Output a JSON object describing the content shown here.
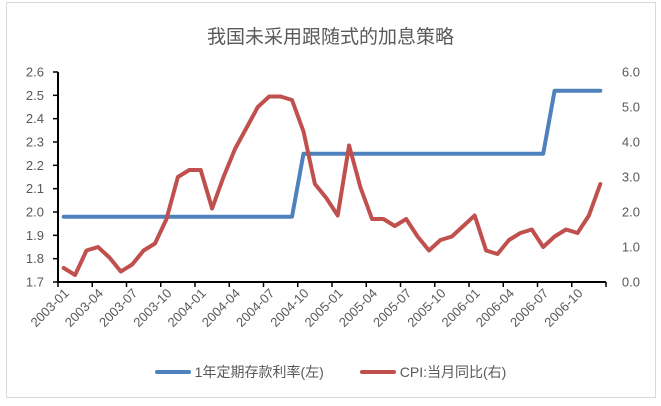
{
  "title": "我国未采用跟随式的加息策略",
  "colors": {
    "rate": "#4f81bd",
    "cpi": "#c0504d",
    "axis": "#000000",
    "text": "#595959"
  },
  "legend": [
    {
      "label": "1年定期存款利率(左)",
      "color": "#4f81bd"
    },
    {
      "label": "CPI:当月同比(右)",
      "color": "#c0504d"
    }
  ],
  "chart_data": {
    "type": "line",
    "title": "我国未采用跟随式的加息策略",
    "xlabel": "",
    "ylabel_left": "",
    "ylabel_right": "",
    "left_axis": {
      "min": 1.7,
      "max": 2.6,
      "step": 0.1,
      "ticks": [
        "2.6",
        "2.5",
        "2.4",
        "2.3",
        "2.2",
        "2.1",
        "2.0",
        "1.9",
        "1.8",
        "1.7"
      ]
    },
    "right_axis": {
      "min": 0.0,
      "max": 6.0,
      "step": 1.0,
      "ticks": [
        "6.0",
        "5.0",
        "4.0",
        "3.0",
        "2.0",
        "1.0",
        "0.0"
      ]
    },
    "x_tick_labels": [
      "2003-01",
      "2003-04",
      "2003-07",
      "2003-10",
      "2004-01",
      "2004-04",
      "2004-07",
      "2004-10",
      "2005-01",
      "2005-04",
      "2005-07",
      "2005-10",
      "2006-01",
      "2006-04",
      "2006-07",
      "2006-10"
    ],
    "x": [
      "2003-01",
      "2003-02",
      "2003-03",
      "2003-04",
      "2003-05",
      "2003-06",
      "2003-07",
      "2003-08",
      "2003-09",
      "2003-10",
      "2003-11",
      "2003-12",
      "2004-01",
      "2004-02",
      "2004-03",
      "2004-04",
      "2004-05",
      "2004-06",
      "2004-07",
      "2004-08",
      "2004-09",
      "2004-10",
      "2004-11",
      "2004-12",
      "2005-01",
      "2005-02",
      "2005-03",
      "2005-04",
      "2005-05",
      "2005-06",
      "2005-07",
      "2005-08",
      "2005-09",
      "2005-10",
      "2005-11",
      "2005-12",
      "2006-01",
      "2006-02",
      "2006-03",
      "2006-04",
      "2006-05",
      "2006-06",
      "2006-07",
      "2006-08",
      "2006-09",
      "2006-10",
      "2006-11",
      "2006-12"
    ],
    "series": [
      {
        "name": "1年定期存款利率(左)",
        "axis": "left",
        "color": "#4f81bd",
        "values": [
          1.98,
          1.98,
          1.98,
          1.98,
          1.98,
          1.98,
          1.98,
          1.98,
          1.98,
          1.98,
          1.98,
          1.98,
          1.98,
          1.98,
          1.98,
          1.98,
          1.98,
          1.98,
          1.98,
          1.98,
          1.98,
          2.25,
          2.25,
          2.25,
          2.25,
          2.25,
          2.25,
          2.25,
          2.25,
          2.25,
          2.25,
          2.25,
          2.25,
          2.25,
          2.25,
          2.25,
          2.25,
          2.25,
          2.25,
          2.25,
          2.25,
          2.25,
          2.25,
          2.52,
          2.52,
          2.52,
          2.52,
          2.52
        ]
      },
      {
        "name": "CPI:当月同比(右)",
        "axis": "right",
        "color": "#c0504d",
        "values": [
          0.4,
          0.2,
          0.9,
          1.0,
          0.7,
          0.3,
          0.5,
          0.9,
          1.1,
          1.8,
          3.0,
          3.2,
          3.2,
          2.1,
          3.0,
          3.8,
          4.4,
          5.0,
          5.3,
          5.3,
          5.2,
          4.3,
          2.8,
          2.4,
          1.9,
          3.9,
          2.7,
          1.8,
          1.8,
          1.6,
          1.8,
          1.3,
          0.9,
          1.2,
          1.3,
          1.6,
          1.9,
          0.9,
          0.8,
          1.2,
          1.4,
          1.5,
          1.0,
          1.3,
          1.5,
          1.4,
          1.9,
          2.8
        ]
      }
    ],
    "legend_position": "bottom",
    "grid": false
  }
}
